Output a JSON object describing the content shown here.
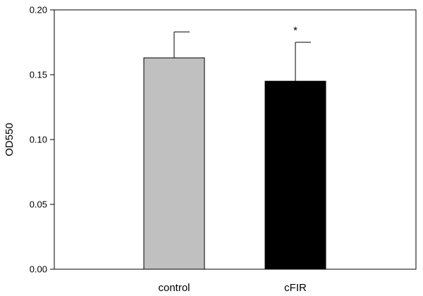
{
  "chart_data": {
    "type": "bar",
    "categories": [
      "control",
      "cFIR"
    ],
    "values": [
      0.163,
      0.145
    ],
    "errors": [
      0.02,
      0.03
    ],
    "bar_colors": [
      "#c0c0c0",
      "#000000"
    ],
    "annotations": [
      "",
      "*"
    ],
    "title": "",
    "xlabel": "",
    "ylabel": "OD550",
    "ylim": [
      0,
      0.2
    ],
    "yticks": [
      "0.00",
      "0.05",
      "0.10",
      "0.15",
      "0.20"
    ],
    "grid": false,
    "legend": "none"
  }
}
